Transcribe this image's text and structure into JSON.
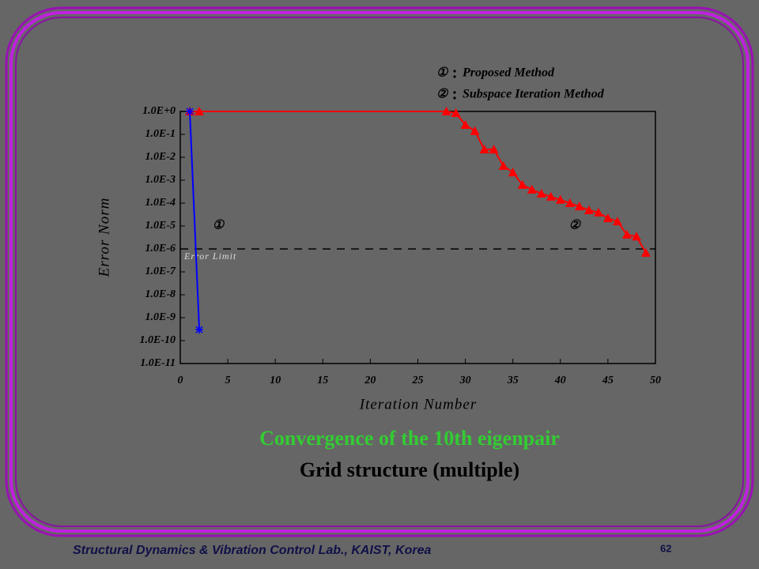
{
  "chart_data": {
    "type": "line",
    "title": "Convergence of the 10th eigenpair",
    "subtitle": "Grid structure (multiple)",
    "x_label": "Iteration Number",
    "y_label": "Error Norm",
    "log_y": true,
    "xlim": [
      0,
      50
    ],
    "xticks": [
      0,
      5,
      10,
      15,
      20,
      25,
      30,
      35,
      40,
      45,
      50
    ],
    "ylim": [
      1e-11,
      1
    ],
    "yticks": [
      {
        "value": 1,
        "label": "1.0E+0"
      },
      {
        "value": 0.1,
        "label": "1.0E-1"
      },
      {
        "value": 0.01,
        "label": "1.0E-2"
      },
      {
        "value": 0.001,
        "label": "1.0E-3"
      },
      {
        "value": 0.0001,
        "label": "1.0E-4"
      },
      {
        "value": 1e-05,
        "label": "1.0E-5"
      },
      {
        "value": 1e-06,
        "label": "1.0E-6"
      },
      {
        "value": 1e-07,
        "label": "1.0E-7"
      },
      {
        "value": 1e-08,
        "label": "1.0E-8"
      },
      {
        "value": 1e-09,
        "label": "1.0E-9"
      },
      {
        "value": 1e-10,
        "label": "1.0E-10"
      },
      {
        "value": 1e-11,
        "label": "1.0E-11"
      }
    ],
    "threshold": {
      "value": 1e-06,
      "label": "Error Limit"
    },
    "series": [
      {
        "name": "Proposed Method",
        "label": "①",
        "color": "#0000ff",
        "marker": "star",
        "x": [
          1,
          2
        ],
        "values": [
          1,
          3e-10
        ],
        "label_at": [
          4,
          1e-05
        ]
      },
      {
        "name": "Subspace Iteration Method",
        "label": "②",
        "color": "#ff0000",
        "marker": "triangle",
        "x": [
          1,
          2,
          28,
          29,
          30,
          31,
          32,
          33,
          34,
          35,
          36,
          37,
          38,
          39,
          40,
          41,
          42,
          43,
          44,
          45,
          46,
          47,
          48,
          49
        ],
        "values": [
          1,
          1,
          1,
          0.85,
          0.26,
          0.14,
          0.022,
          0.022,
          0.0042,
          0.0022,
          0.00063,
          0.00039,
          0.00026,
          0.00019,
          0.00014,
          0.0001,
          7.2e-05,
          4.9e-05,
          3.9e-05,
          2.2e-05,
          1.6e-05,
          4.2e-06,
          3.5e-06,
          6.8e-07
        ],
        "label_at": [
          41.5,
          1e-05
        ]
      }
    ]
  },
  "footer": {
    "text": "Structural Dynamics & Vibration Control Lab., KAIST, Korea",
    "page": "62"
  }
}
